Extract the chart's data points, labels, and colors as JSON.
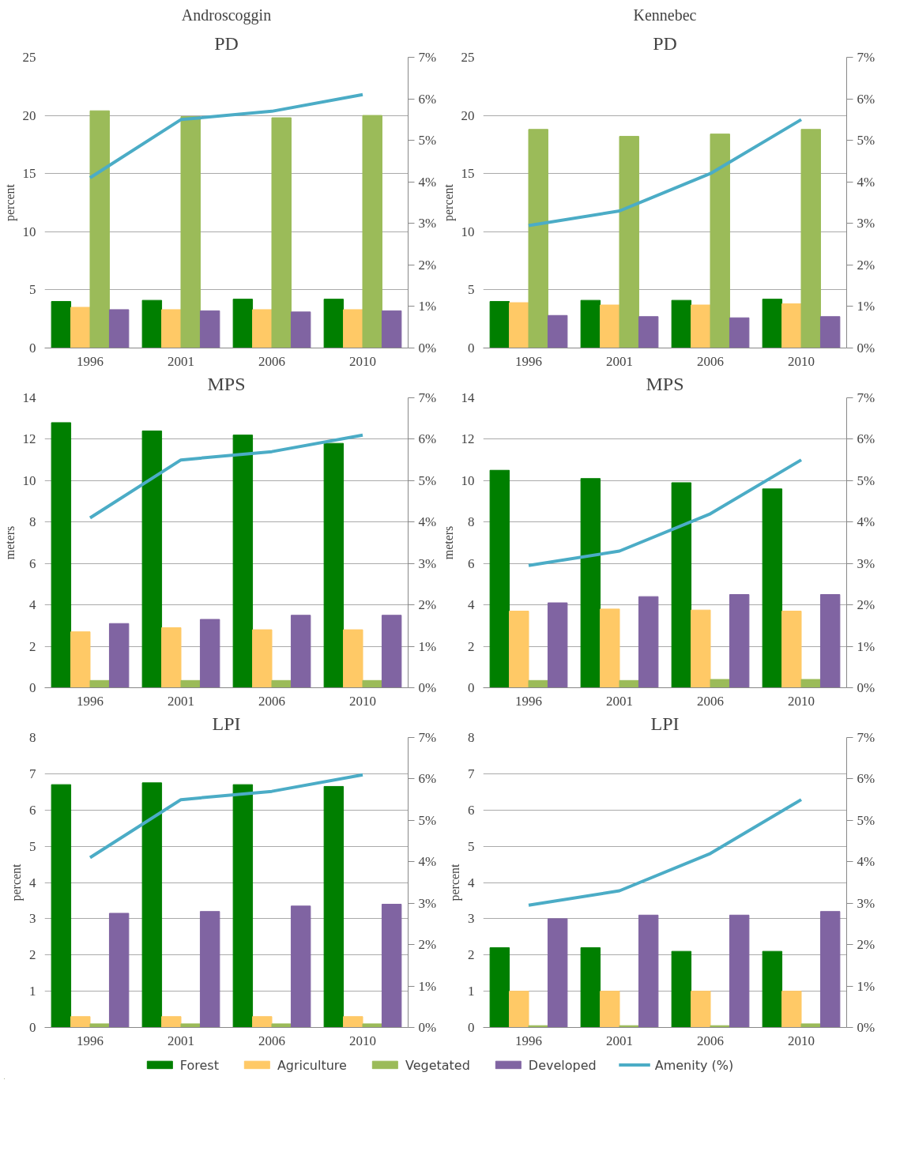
{
  "chart_data": [
    {
      "type": "bar",
      "title": "PD",
      "annotations": [
        "Androscoggin"
      ],
      "ylabel": "percent",
      "categories": [
        "1996",
        "2001",
        "2006",
        "2010"
      ],
      "ylim": [
        0,
        25
      ],
      "yticks": [
        0,
        5,
        10,
        15,
        20,
        25
      ],
      "y2lim": [
        0,
        7
      ],
      "y2ticks": [
        {
          "value": 0,
          "label": "0%"
        },
        {
          "value": 1,
          "label": "1%"
        },
        {
          "value": 2,
          "label": "2%"
        },
        {
          "value": 3,
          "label": "3%"
        },
        {
          "value": 4,
          "label": "4%"
        },
        {
          "value": 5,
          "label": "5%"
        },
        {
          "value": 6,
          "label": "6%"
        },
        {
          "value": 7,
          "label": "7%"
        }
      ],
      "grid": "y",
      "series": [
        {
          "color": "#007f00",
          "values": [
            4.0,
            4.1,
            4.2,
            4.2
          ]
        },
        {
          "color": "#ffc966",
          "values": [
            3.5,
            3.3,
            3.3,
            3.3
          ]
        },
        {
          "color": "#9bbb59",
          "values": [
            20.4,
            19.9,
            19.8,
            20.0
          ]
        },
        {
          "color": "#8064a2",
          "values": [
            3.3,
            3.2,
            3.1,
            3.2
          ]
        },
        {
          "type": "line",
          "axis": "y2",
          "color": "#4bacc6",
          "values": [
            4.1,
            5.5,
            5.7,
            6.1
          ]
        }
      ]
    },
    {
      "type": "bar",
      "title": "PD",
      "annotations": [
        "Kennebec"
      ],
      "ylabel": "percent",
      "categories": [
        "1996",
        "2001",
        "2006",
        "2010"
      ],
      "ylim": [
        0,
        25
      ],
      "yticks": [
        0,
        5,
        10,
        15,
        20,
        25
      ],
      "y2lim": [
        0,
        7
      ],
      "y2ticks": [
        {
          "value": 0,
          "label": "0%"
        },
        {
          "value": 1,
          "label": "1%"
        },
        {
          "value": 2,
          "label": "2%"
        },
        {
          "value": 3,
          "label": "3%"
        },
        {
          "value": 4,
          "label": "4%"
        },
        {
          "value": 5,
          "label": "5%"
        },
        {
          "value": 6,
          "label": "6%"
        },
        {
          "value": 7,
          "label": "7%"
        }
      ],
      "grid": "y",
      "series": [
        {
          "color": "#007f00",
          "values": [
            4.0,
            4.1,
            4.1,
            4.2
          ]
        },
        {
          "color": "#ffc966",
          "values": [
            3.9,
            3.7,
            3.7,
            3.8
          ]
        },
        {
          "color": "#9bbb59",
          "values": [
            18.8,
            18.2,
            18.4,
            18.8
          ]
        },
        {
          "color": "#8064a2",
          "values": [
            2.8,
            2.7,
            2.6,
            2.7
          ]
        },
        {
          "type": "line",
          "axis": "y2",
          "color": "#4bacc6",
          "values": [
            2.95,
            3.3,
            4.2,
            5.5
          ]
        }
      ]
    },
    {
      "type": "bar",
      "title": "MPS",
      "ylabel": "meters",
      "categories": [
        "1996",
        "2001",
        "2006",
        "2010"
      ],
      "ylim": [
        0,
        14
      ],
      "yticks": [
        0,
        2,
        4,
        6,
        8,
        10,
        12,
        14
      ],
      "y2lim": [
        0,
        7
      ],
      "y2ticks": [
        {
          "value": 0,
          "label": "0%"
        },
        {
          "value": 1,
          "label": "1%"
        },
        {
          "value": 2,
          "label": "2%"
        },
        {
          "value": 3,
          "label": "3%"
        },
        {
          "value": 4,
          "label": "4%"
        },
        {
          "value": 5,
          "label": "5%"
        },
        {
          "value": 6,
          "label": "6%"
        },
        {
          "value": 7,
          "label": "7%"
        }
      ],
      "grid": "y",
      "series": [
        {
          "color": "#007f00",
          "values": [
            12.8,
            12.4,
            12.2,
            11.8
          ]
        },
        {
          "color": "#ffc966",
          "values": [
            2.7,
            2.9,
            2.8,
            2.8
          ]
        },
        {
          "color": "#9bbb59",
          "values": [
            0.35,
            0.35,
            0.35,
            0.35
          ]
        },
        {
          "color": "#8064a2",
          "values": [
            3.1,
            3.3,
            3.5,
            3.5
          ]
        },
        {
          "type": "line",
          "axis": "y2",
          "color": "#4bacc6",
          "values": [
            4.1,
            5.5,
            5.7,
            6.1
          ]
        }
      ]
    },
    {
      "type": "bar",
      "title": "MPS",
      "ylabel": "meters",
      "categories": [
        "1996",
        "2001",
        "2006",
        "2010"
      ],
      "ylim": [
        0,
        14
      ],
      "yticks": [
        0,
        2,
        4,
        6,
        8,
        10,
        12,
        14
      ],
      "y2lim": [
        0,
        7
      ],
      "y2ticks": [
        {
          "value": 0,
          "label": "0%"
        },
        {
          "value": 1,
          "label": "1%"
        },
        {
          "value": 2,
          "label": "2%"
        },
        {
          "value": 3,
          "label": "3%"
        },
        {
          "value": 4,
          "label": "4%"
        },
        {
          "value": 5,
          "label": "5%"
        },
        {
          "value": 6,
          "label": "6%"
        },
        {
          "value": 7,
          "label": "7%"
        }
      ],
      "grid": "y",
      "series": [
        {
          "color": "#007f00",
          "values": [
            10.5,
            10.1,
            9.9,
            9.6
          ]
        },
        {
          "color": "#ffc966",
          "values": [
            3.7,
            3.8,
            3.75,
            3.7
          ]
        },
        {
          "color": "#9bbb59",
          "values": [
            0.35,
            0.35,
            0.4,
            0.4
          ]
        },
        {
          "color": "#8064a2",
          "values": [
            4.1,
            4.4,
            4.5,
            4.5
          ]
        },
        {
          "type": "line",
          "axis": "y2",
          "color": "#4bacc6",
          "values": [
            2.95,
            3.3,
            4.2,
            5.5
          ]
        }
      ]
    },
    {
      "type": "bar",
      "title": "LPI",
      "ylabel": "percent",
      "categories": [
        "1996",
        "2001",
        "2006",
        "2010"
      ],
      "ylim": [
        0,
        8
      ],
      "yticks": [
        0,
        1,
        2,
        3,
        4,
        5,
        6,
        7,
        8
      ],
      "y2lim": [
        0,
        7
      ],
      "y2ticks": [
        {
          "value": 0,
          "label": "0%"
        },
        {
          "value": 1,
          "label": "1%"
        },
        {
          "value": 2,
          "label": "2%"
        },
        {
          "value": 3,
          "label": "3%"
        },
        {
          "value": 4,
          "label": "4%"
        },
        {
          "value": 5,
          "label": "5%"
        },
        {
          "value": 6,
          "label": "6%"
        },
        {
          "value": 7,
          "label": "7%"
        }
      ],
      "grid": "y",
      "series": [
        {
          "color": "#007f00",
          "values": [
            6.7,
            6.75,
            6.7,
            6.65
          ]
        },
        {
          "color": "#ffc966",
          "values": [
            0.3,
            0.3,
            0.3,
            0.3
          ]
        },
        {
          "color": "#9bbb59",
          "values": [
            0.1,
            0.1,
            0.1,
            0.1
          ]
        },
        {
          "color": "#8064a2",
          "values": [
            3.15,
            3.2,
            3.35,
            3.4
          ]
        },
        {
          "type": "line",
          "axis": "y2",
          "color": "#4bacc6",
          "values": [
            4.1,
            5.5,
            5.7,
            6.1
          ]
        }
      ]
    },
    {
      "type": "bar",
      "title": "LPI",
      "ylabel": "percent",
      "categories": [
        "1996",
        "2001",
        "2006",
        "2010"
      ],
      "ylim": [
        0,
        8
      ],
      "yticks": [
        0,
        1,
        2,
        3,
        4,
        5,
        6,
        7,
        8
      ],
      "y2lim": [
        0,
        7
      ],
      "y2ticks": [
        {
          "value": 0,
          "label": "0%"
        },
        {
          "value": 1,
          "label": "1%"
        },
        {
          "value": 2,
          "label": "2%"
        },
        {
          "value": 3,
          "label": "3%"
        },
        {
          "value": 4,
          "label": "4%"
        },
        {
          "value": 5,
          "label": "5%"
        },
        {
          "value": 6,
          "label": "6%"
        },
        {
          "value": 7,
          "label": "7%"
        }
      ],
      "grid": "y",
      "legend": "bottom",
      "series": [
        {
          "name": "Forest",
          "color": "#007f00",
          "values": [
            2.2,
            2.2,
            2.1,
            2.1
          ]
        },
        {
          "name": "Agriculture",
          "color": "#ffc966",
          "values": [
            1.0,
            1.0,
            1.0,
            1.0
          ]
        },
        {
          "name": "Vegetated",
          "color": "#9bbb59",
          "values": [
            0.05,
            0.05,
            0.05,
            0.1
          ]
        },
        {
          "name": "Developed",
          "color": "#8064a2",
          "values": [
            3.0,
            3.1,
            3.1,
            3.2
          ]
        },
        {
          "name": "Amenity (%)",
          "type": "line",
          "axis": "y2",
          "color": "#4bacc6",
          "values": [
            2.95,
            3.3,
            4.2,
            5.5
          ]
        }
      ]
    }
  ]
}
